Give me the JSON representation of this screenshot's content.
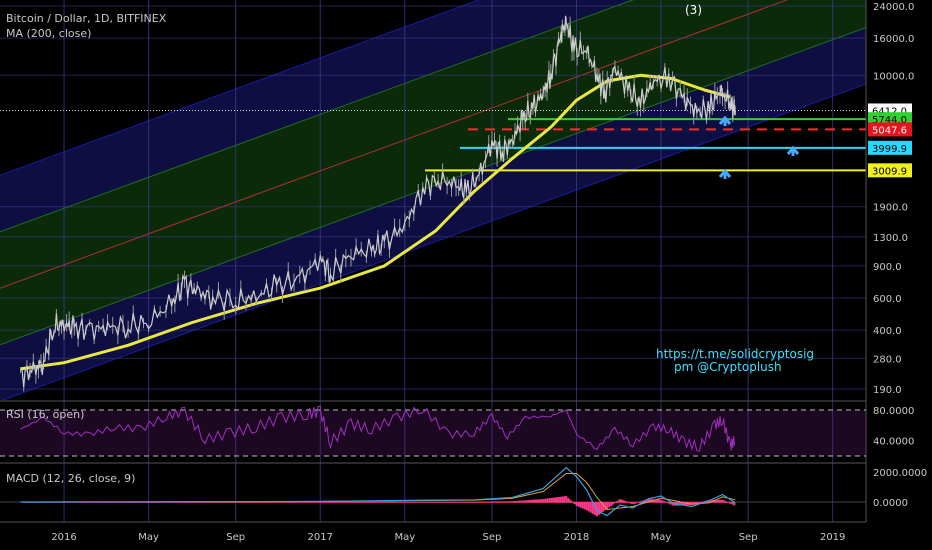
{
  "header": {
    "symbol": "Bitcoin / Dollar, 1D, BITFINEX",
    "indicator": "MA (200, close)",
    "wave_label": "(3)"
  },
  "annotation": {
    "line1": "https://t.me/solidcryptosig",
    "line2": "pm @Cryptoplush"
  },
  "colors": {
    "background": "#000000",
    "grid": "#3a3a8a",
    "ma_line": "#e8e840",
    "candle_up": "#cccccc",
    "candle_down": "#cccccc",
    "channel_blue": "#1a1aa0",
    "channel_green": "#1f6e1f",
    "channel_mid": "#b03030",
    "rsi": "#a030c0",
    "macd": "#3aa0e0",
    "signal": "#e0a040",
    "histogram": "#ff3a8a",
    "text": "#c8c8c8",
    "annotation": "#3ee0ff",
    "arrow": "#4aa8ff"
  },
  "chart_data": [
    {
      "type": "line",
      "panel": "price",
      "log_scale": true,
      "ylim": [
        160,
        24000
      ],
      "x_tick_labels": [
        "2016",
        "May",
        "Sep",
        "2017",
        "May",
        "Sep",
        "2018",
        "May",
        "Sep",
        "2019"
      ],
      "y_tick_labels": [
        "24000.0",
        "16000.0",
        "10000.0",
        "6412.0",
        "5744.0",
        "5047.6",
        "3999.9",
        "3009.9",
        "1900.0",
        "1300.0",
        "900.0",
        "600.0",
        "400.0",
        "280.0",
        "190.0"
      ],
      "y_ticks": [
        24000,
        16000,
        10000,
        1900,
        1300,
        900,
        600,
        400,
        280,
        190
      ],
      "price_series": [
        [
          2015.83,
          225
        ],
        [
          2015.88,
          240
        ],
        [
          2015.92,
          265
        ],
        [
          2015.96,
          420
        ],
        [
          2016.0,
          430
        ],
        [
          2016.04,
          410
        ],
        [
          2016.1,
          400
        ],
        [
          2016.17,
          415
        ],
        [
          2016.25,
          420
        ],
        [
          2016.33,
          445
        ],
        [
          2016.42,
          560
        ],
        [
          2016.47,
          720
        ],
        [
          2016.52,
          650
        ],
        [
          2016.58,
          600
        ],
        [
          2016.67,
          580
        ],
        [
          2016.75,
          610
        ],
        [
          2016.83,
          700
        ],
        [
          2016.92,
          760
        ],
        [
          2017.0,
          990
        ],
        [
          2017.04,
          820
        ],
        [
          2017.12,
          1050
        ],
        [
          2017.2,
          1100
        ],
        [
          2017.25,
          1200
        ],
        [
          2017.33,
          1500
        ],
        [
          2017.4,
          2400
        ],
        [
          2017.46,
          2700
        ],
        [
          2017.53,
          2500
        ],
        [
          2017.57,
          2300
        ],
        [
          2017.62,
          2800
        ],
        [
          2017.67,
          4300
        ],
        [
          2017.71,
          3800
        ],
        [
          2017.75,
          4400
        ],
        [
          2017.79,
          5800
        ],
        [
          2017.83,
          6600
        ],
        [
          2017.87,
          8000
        ],
        [
          2017.9,
          10000
        ],
        [
          2017.94,
          17000
        ],
        [
          2017.96,
          19500
        ],
        [
          2017.99,
          14000
        ],
        [
          2018.04,
          13500
        ],
        [
          2018.08,
          10000
        ],
        [
          2018.11,
          8000
        ],
        [
          2018.15,
          11000
        ],
        [
          2018.2,
          8500
        ],
        [
          2018.25,
          7000
        ],
        [
          2018.3,
          9200
        ],
        [
          2018.36,
          9700
        ],
        [
          2018.42,
          7500
        ],
        [
          2018.47,
          6300
        ],
        [
          2018.52,
          6600
        ],
        [
          2018.56,
          8200
        ],
        [
          2018.6,
          7000
        ],
        [
          2018.62,
          6412
        ]
      ],
      "ma_200": [
        [
          2015.83,
          245
        ],
        [
          2016.0,
          265
        ],
        [
          2016.25,
          330
        ],
        [
          2016.5,
          440
        ],
        [
          2016.75,
          560
        ],
        [
          2017.0,
          680
        ],
        [
          2017.25,
          900
        ],
        [
          2017.45,
          1400
        ],
        [
          2017.6,
          2300
        ],
        [
          2017.75,
          3500
        ],
        [
          2017.9,
          5200
        ],
        [
          2018.0,
          7300
        ],
        [
          2018.12,
          9300
        ],
        [
          2018.25,
          10000
        ],
        [
          2018.37,
          9600
        ],
        [
          2018.5,
          8300
        ],
        [
          2018.6,
          7600
        ]
      ],
      "horizontal_levels": [
        {
          "value": 6412.0,
          "label": "6412.0",
          "style": "dotted",
          "color": "#dddddd",
          "label_color": "#2a2a2a"
        },
        {
          "value": 5744.0,
          "label": "5744.0",
          "style": "solid",
          "color": "#2ed12e",
          "label_color": "#2ed12e"
        },
        {
          "value": 5047.6,
          "label": "5047.6",
          "style": "dashed",
          "color": "#ff2a2a",
          "label_color": "#e8131f"
        },
        {
          "value": 3999.9,
          "label": "3999.9",
          "style": "solid",
          "color": "#29d8ff",
          "label_color": "#29d8ff"
        },
        {
          "value": 3009.9,
          "label": "3009.9",
          "style": "solid",
          "color": "#f0f020",
          "label_color": "#f0f020"
        }
      ]
    },
    {
      "type": "line",
      "panel": "rsi",
      "title": "RSI (16, open)",
      "ylim": [
        0,
        100
      ],
      "y_tick_labels": [
        "80.0000",
        "40.0000"
      ],
      "y_ticks": [
        80,
        40
      ],
      "bands": [
        80,
        20
      ],
      "series": [
        [
          2015.83,
          55
        ],
        [
          2015.92,
          70
        ],
        [
          2016.0,
          50
        ],
        [
          2016.1,
          48
        ],
        [
          2016.2,
          58
        ],
        [
          2016.3,
          55
        ],
        [
          2016.4,
          72
        ],
        [
          2016.47,
          78
        ],
        [
          2016.55,
          42
        ],
        [
          2016.65,
          50
        ],
        [
          2016.75,
          58
        ],
        [
          2016.85,
          70
        ],
        [
          2016.95,
          75
        ],
        [
          2017.0,
          78
        ],
        [
          2017.04,
          38
        ],
        [
          2017.12,
          62
        ],
        [
          2017.2,
          55
        ],
        [
          2017.3,
          70
        ],
        [
          2017.4,
          82
        ],
        [
          2017.5,
          48
        ],
        [
          2017.6,
          50
        ],
        [
          2017.67,
          72
        ],
        [
          2017.73,
          45
        ],
        [
          2017.8,
          70
        ],
        [
          2017.9,
          72
        ],
        [
          2017.96,
          80
        ],
        [
          2018.0,
          48
        ],
        [
          2018.08,
          30
        ],
        [
          2018.15,
          55
        ],
        [
          2018.22,
          35
        ],
        [
          2018.3,
          58
        ],
        [
          2018.36,
          55
        ],
        [
          2018.42,
          38
        ],
        [
          2018.48,
          32
        ],
        [
          2018.54,
          60
        ],
        [
          2018.57,
          68
        ],
        [
          2018.6,
          33
        ],
        [
          2018.62,
          42
        ]
      ]
    },
    {
      "type": "line",
      "panel": "macd",
      "title": "MACD (12, 26, close, 9)",
      "ylim": [
        -1800,
        3000
      ],
      "y_tick_labels": [
        "2000.0000",
        "0.0000"
      ],
      "y_ticks": [
        2000,
        0
      ],
      "macd_series": [
        [
          2015.83,
          0
        ],
        [
          2016.5,
          20
        ],
        [
          2017.0,
          40
        ],
        [
          2017.4,
          120
        ],
        [
          2017.6,
          150
        ],
        [
          2017.75,
          300
        ],
        [
          2017.87,
          900
        ],
        [
          2017.96,
          2300
        ],
        [
          2018.0,
          1700
        ],
        [
          2018.04,
          800
        ],
        [
          2018.08,
          -600
        ],
        [
          2018.12,
          -900
        ],
        [
          2018.17,
          -200
        ],
        [
          2018.22,
          -400
        ],
        [
          2018.28,
          200
        ],
        [
          2018.33,
          400
        ],
        [
          2018.38,
          -100
        ],
        [
          2018.45,
          -300
        ],
        [
          2018.52,
          100
        ],
        [
          2018.57,
          500
        ],
        [
          2018.62,
          -50
        ]
      ],
      "signal_series": [
        [
          2015.83,
          0
        ],
        [
          2016.5,
          15
        ],
        [
          2017.0,
          35
        ],
        [
          2017.4,
          100
        ],
        [
          2017.6,
          130
        ],
        [
          2017.75,
          250
        ],
        [
          2017.87,
          700
        ],
        [
          2017.96,
          1900
        ],
        [
          2018.0,
          1900
        ],
        [
          2018.04,
          1300
        ],
        [
          2018.08,
          300
        ],
        [
          2018.12,
          -500
        ],
        [
          2018.17,
          -400
        ],
        [
          2018.22,
          -300
        ],
        [
          2018.28,
          0
        ],
        [
          2018.33,
          250
        ],
        [
          2018.38,
          100
        ],
        [
          2018.45,
          -150
        ],
        [
          2018.52,
          -50
        ],
        [
          2018.57,
          350
        ],
        [
          2018.62,
          150
        ]
      ]
    }
  ]
}
